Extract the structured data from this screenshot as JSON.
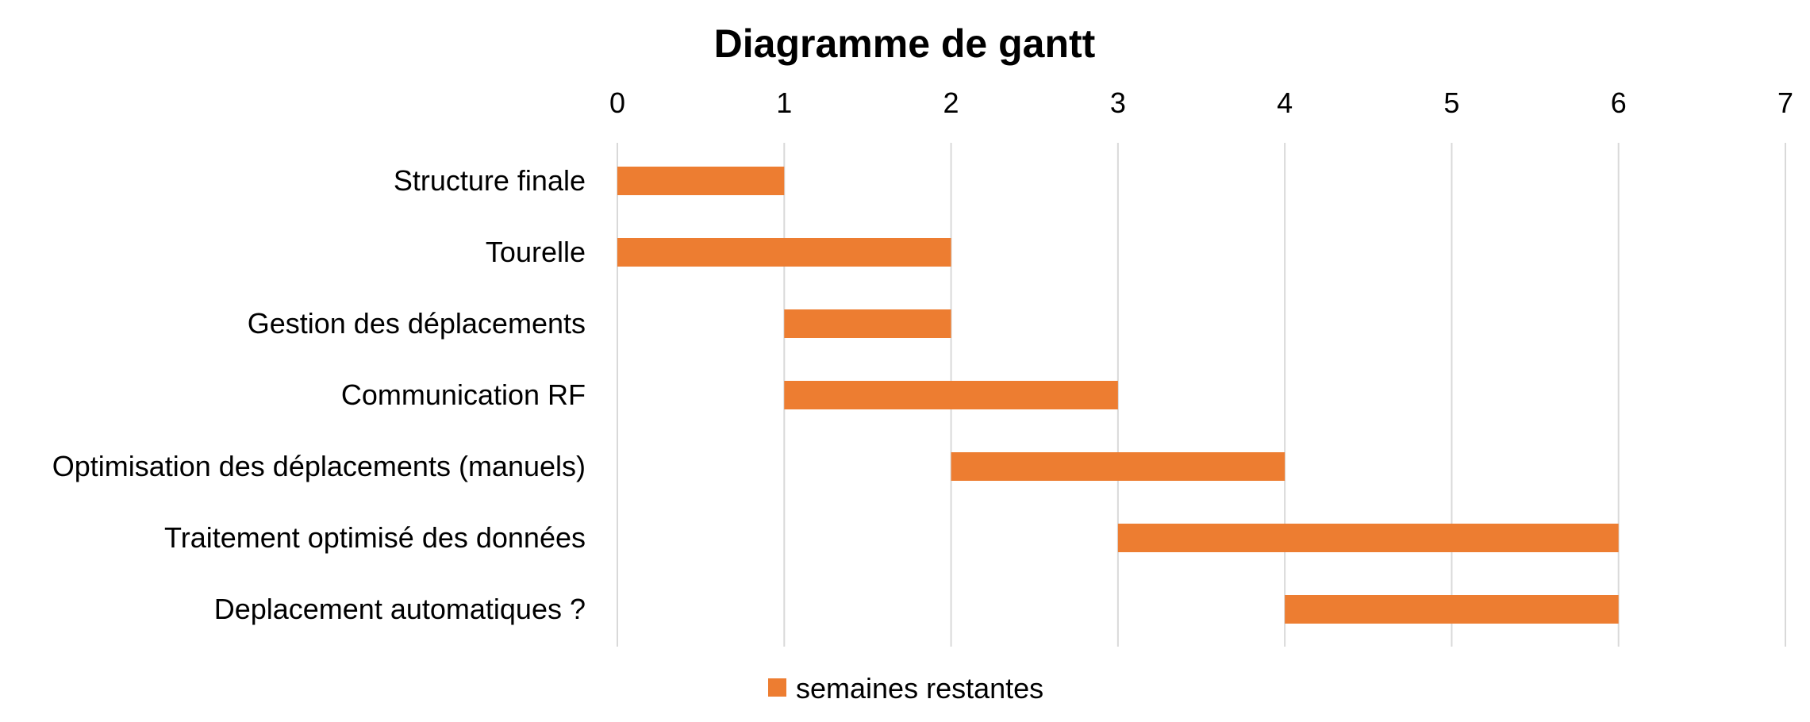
{
  "chart_data": {
    "type": "bar",
    "orientation": "horizontal",
    "stacked": true,
    "title": "Diagramme de gantt",
    "xlabel": "",
    "ylabel": "",
    "xlim": [
      0,
      7
    ],
    "x_ticks": [
      0,
      1,
      2,
      3,
      4,
      5,
      6,
      7
    ],
    "x_axis_position": "top",
    "grid": true,
    "legend_position": "bottom",
    "categories": [
      "Structure finale",
      "Tourelle",
      "Gestion des déplacements",
      "Communication RF",
      "Optimisation  des déplacements (manuels)",
      "Traitement optimisé des données",
      "Deplacement automatiques ?"
    ],
    "series": [
      {
        "role": "offset",
        "values": [
          0,
          0,
          1,
          1,
          2,
          3,
          4
        ],
        "color": "none"
      },
      {
        "name": "semaines restantes",
        "values": [
          1,
          2,
          1,
          2,
          2,
          3,
          2
        ],
        "color": "#ed7d31"
      }
    ]
  }
}
